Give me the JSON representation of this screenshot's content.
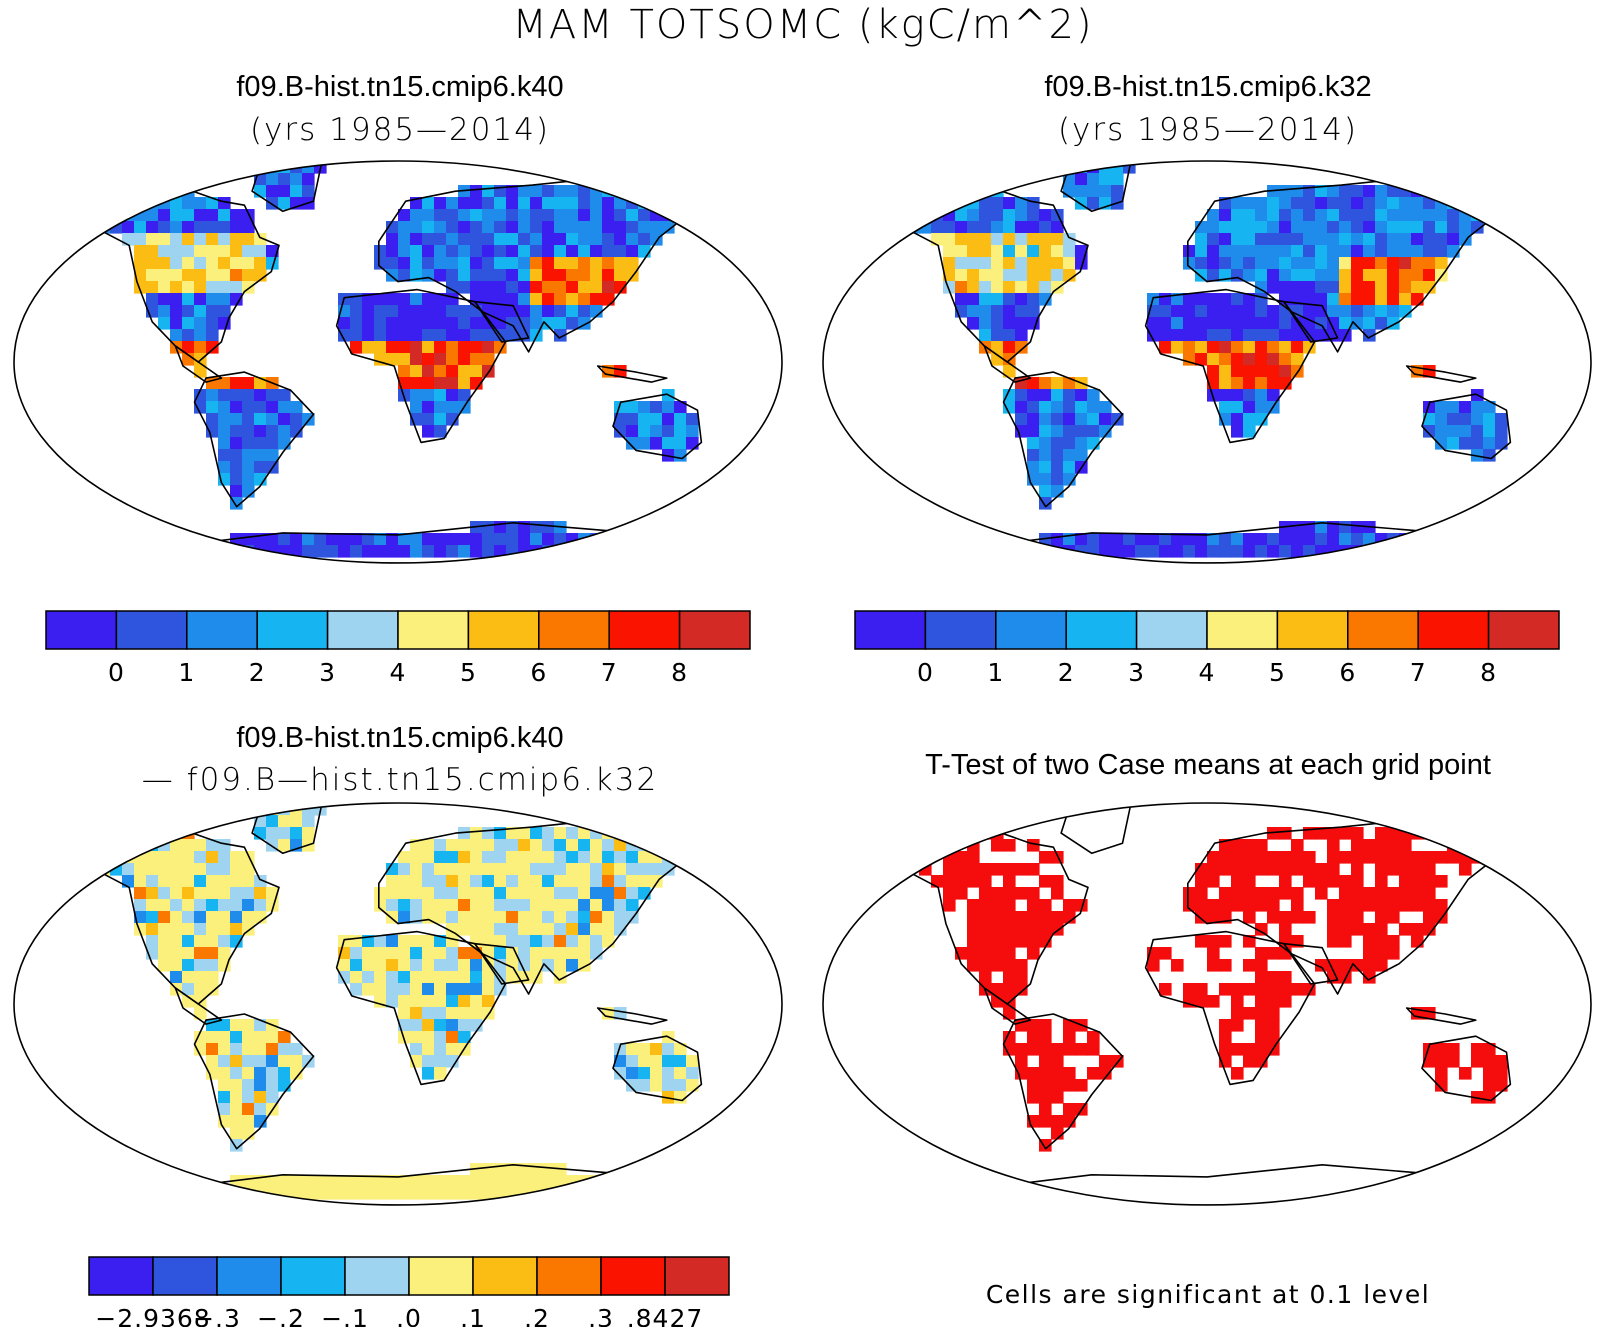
{
  "title": "MAM TOTSOMC (kgC/m^2)",
  "palette": [
    "#3a1ff0",
    "#2f55de",
    "#1f8ceb",
    "#16b4f0",
    "#9fd4f0",
    "#fbf07c",
    "#fbbc14",
    "#fa7800",
    "#fa1400",
    "#d42a26"
  ],
  "map_colors": {
    "ocean": "#ffffff",
    "coast": "#000000",
    "significant": "#f50d0d"
  },
  "panels": [
    {
      "title": "f09.B-hist.tn15.cmip6.k40",
      "subtitle": "(yrs 1985—2014)",
      "colorbar": {
        "ticks": [
          "0",
          "1",
          "2",
          "3",
          "4",
          "5",
          "6",
          "7",
          "8"
        ]
      }
    },
    {
      "title": "f09.B-hist.tn15.cmip6.k32",
      "subtitle": "(yrs 1985—2014)",
      "colorbar": {
        "ticks": [
          "0",
          "1",
          "2",
          "3",
          "4",
          "5",
          "6",
          "7",
          "8"
        ]
      }
    },
    {
      "title": "f09.B-hist.tn15.cmip6.k40",
      "subtitle": "— f09.B—hist.tn15.cmip6.k32",
      "colorbar": {
        "ticks": [
          "−2.9368",
          "−.3",
          "−.2",
          "−.1",
          ".0",
          ".1",
          ".2",
          ".3",
          ".8427"
        ]
      }
    },
    {
      "title": "T-Test of two Case means at each grid point",
      "subtitle": "",
      "note": "Cells are significant at 0.1 level"
    }
  ]
}
